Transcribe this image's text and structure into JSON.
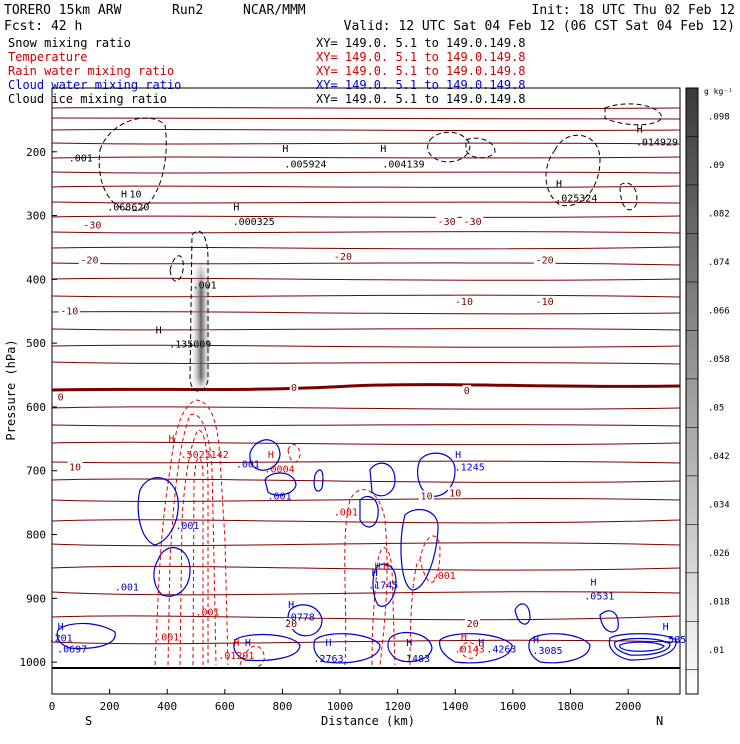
{
  "header": {
    "model": "TORERO  15km ARW",
    "run": "Run2",
    "org": "NCAR/MMM",
    "init": "Init: 18 UTC Thu 02 Feb 12",
    "fcst": "Fcst:   42 h",
    "valid": "Valid: 12 UTC Sat 04 Feb 12 (06 CST Sat 04 Feb 12)"
  },
  "legend": [
    {
      "name": "Snow mixing ratio",
      "xy": "",
      "color": "#000000"
    },
    {
      "name": "Temperature",
      "xy": "XY= 149.0.  5.1 to 149.0.149.8",
      "color": "#cc0000"
    },
    {
      "name": "Rain water mixing ratio",
      "xy": "XY= 149.0.  5.1 to 149.0.149.8",
      "color": "#cc0000"
    },
    {
      "name": "Cloud water mixing ratio",
      "xy": "XY= 149.0.  5.1 to 149.0.149.8",
      "color": "#0000cc"
    },
    {
      "name": "Cloud ice mixing ratio",
      "xy": "XY= 149.0.  5.1 to 149.0.149.8",
      "color": "#000000"
    }
  ],
  "xy_snow": "XY= 149.0.  5.1 to 149.0.149.8",
  "colors": {
    "temperature": "#7a0000",
    "freezing": "#7a0000",
    "rain": "#dd0000",
    "cloud_water": "#0000cc",
    "cloud_ice": "#000000",
    "snow_fill": "#555555"
  },
  "chart_data": {
    "type": "contour",
    "xlabel": "Distance (km)",
    "ylabel": "Pressure (hPa)",
    "xlim": [
      0,
      2180
    ],
    "ylim": [
      1050,
      100
    ],
    "x_ticks": [
      0,
      200,
      400,
      600,
      800,
      1000,
      1200,
      1400,
      1600,
      1800,
      2000
    ],
    "y_ticks": [
      200,
      300,
      400,
      500,
      600,
      700,
      800,
      900,
      1000
    ],
    "x_end_left": "S",
    "x_end_right": "N",
    "colorbar": {
      "unit": "g kg⁻¹",
      "ticks": [
        ".098",
        ".09",
        ".082",
        ".074",
        ".066",
        ".058",
        ".05",
        ".042",
        ".034",
        ".026",
        ".018",
        ".01"
      ]
    },
    "temperature_labels": [
      {
        "text": "-30",
        "x": 140,
        "p": 320
      },
      {
        "text": "-30",
        "x": 1370,
        "p": 315
      },
      {
        "text": "-30",
        "x": 1460,
        "p": 315
      },
      {
        "text": "-20",
        "x": 130,
        "p": 375
      },
      {
        "text": "-20",
        "x": 1010,
        "p": 370
      },
      {
        "text": "-20",
        "x": 1710,
        "p": 375
      },
      {
        "text": "-10",
        "x": 60,
        "p": 455
      },
      {
        "text": "-10",
        "x": 1430,
        "p": 440
      },
      {
        "text": "-10",
        "x": 1710,
        "p": 440
      },
      {
        "text": "0",
        "x": 30,
        "p": 590
      },
      {
        "text": "0",
        "x": 840,
        "p": 575
      },
      {
        "text": "0",
        "x": 1440,
        "p": 580
      },
      {
        "text": "10",
        "x": 80,
        "p": 700
      },
      {
        "text": "10",
        "x": 1300,
        "p": 745
      },
      {
        "text": "10",
        "x": 1400,
        "p": 740
      },
      {
        "text": "20",
        "x": 830,
        "p": 945
      },
      {
        "text": "20",
        "x": 1460,
        "p": 945
      }
    ],
    "ice_labels": [
      {
        "text": ".001",
        "x": 100,
        "p": 215
      },
      {
        "text": "H",
        "x": 810,
        "p": 200
      },
      {
        "text": ".005924",
        "x": 880,
        "p": 225
      },
      {
        "text": "H",
        "x": 1150,
        "p": 200
      },
      {
        "text": ".004139",
        "x": 1220,
        "p": 225
      },
      {
        "text": "H",
        "x": 2040,
        "p": 170
      },
      {
        "text": ".014929",
        "x": 2100,
        "p": 190
      },
      {
        "text": "H",
        "x": 1760,
        "p": 255
      },
      {
        "text": ".025324",
        "x": 1820,
        "p": 278
      },
      {
        "text": "H",
        "x": 250,
        "p": 272
      },
      {
        "text": "10",
        "x": 290,
        "p": 272
      },
      {
        "text": ".068620",
        "x": 265,
        "p": 292
      },
      {
        "text": "H",
        "x": 640,
        "p": 292
      },
      {
        "text": ".000325",
        "x": 700,
        "p": 315
      },
      {
        "text": ".001",
        "x": 530,
        "p": 414
      },
      {
        "text": "H",
        "x": 370,
        "p": 485
      },
      {
        "text": ".135009",
        "x": 480,
        "p": 507
      }
    ],
    "rain_labels": [
      {
        "text": "H",
        "x": 415,
        "p": 655
      },
      {
        "text": ".5023142",
        "x": 530,
        "p": 680
      },
      {
        "text": "H",
        "x": 760,
        "p": 680
      },
      {
        "text": ".0004",
        "x": 790,
        "p": 703
      },
      {
        "text": ".001",
        "x": 1020,
        "p": 770
      },
      {
        "text": "H",
        "x": 1130,
        "p": 855
      },
      {
        "text": "H",
        "x": 1160,
        "p": 855
      },
      {
        "text": ".001",
        "x": 1360,
        "p": 870
      },
      {
        "text": ".001",
        "x": 540,
        "p": 927
      },
      {
        "text": ".001",
        "x": 400,
        "p": 966
      },
      {
        "text": "H",
        "x": 640,
        "p": 975
      },
      {
        "text": ".01291",
        "x": 640,
        "p": 995
      },
      {
        "text": "H",
        "x": 1430,
        "p": 965
      },
      {
        "text": ".0143",
        "x": 1450,
        "p": 985
      }
    ],
    "cloud_water_labels": [
      {
        "text": "H",
        "x": 1410,
        "p": 680
      },
      {
        "text": ".1245",
        "x": 1450,
        "p": 700
      },
      {
        "text": ".001",
        "x": 680,
        "p": 695
      },
      {
        "text": ".001",
        "x": 790,
        "p": 745
      },
      {
        "text": ".001",
        "x": 470,
        "p": 791
      },
      {
        "text": ".001",
        "x": 260,
        "p": 888
      },
      {
        "text": "H",
        "x": 1120,
        "p": 865
      },
      {
        "text": ".1745",
        "x": 1150,
        "p": 885
      },
      {
        "text": "H",
        "x": 830,
        "p": 915
      },
      {
        "text": ".0778",
        "x": 860,
        "p": 935
      },
      {
        "text": "H",
        "x": 1880,
        "p": 880
      },
      {
        "text": ".0531",
        "x": 1900,
        "p": 902
      },
      {
        "text": "H",
        "x": 30,
        "p": 950
      },
      {
        "text": ".201",
        "x": 30,
        "p": 968
      },
      {
        "text": ".0697",
        "x": 70,
        "p": 985
      },
      {
        "text": "H",
        "x": 680,
        "p": 975
      },
      {
        "text": "H",
        "x": 960,
        "p": 975
      },
      {
        "text": ".2763",
        "x": 960,
        "p": 1000
      },
      {
        "text": "H",
        "x": 1240,
        "p": 975
      },
      {
        "text": ".1483",
        "x": 1260,
        "p": 1000
      },
      {
        "text": "H",
        "x": 1490,
        "p": 975
      },
      {
        "text": ".4263",
        "x": 1560,
        "p": 985
      },
      {
        "text": "H",
        "x": 1680,
        "p": 970
      },
      {
        "text": ".3085",
        "x": 1720,
        "p": 987
      },
      {
        "text": "H",
        "x": 2130,
        "p": 950
      },
      {
        "text": ".5852",
        "x": 2170,
        "p": 970
      }
    ]
  }
}
